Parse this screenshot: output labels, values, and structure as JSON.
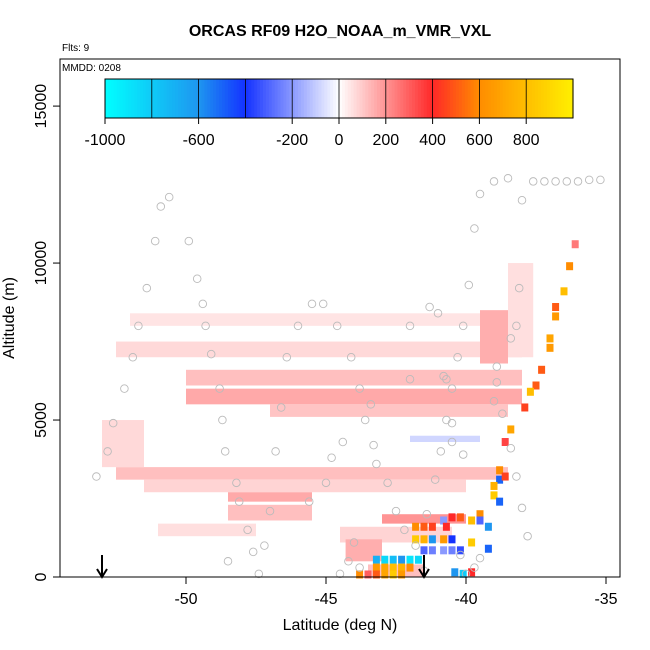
{
  "chart_data": {
    "type": "heatmap",
    "title": "ORCAS RF09 H2O_NOAA_m_VMR_VXL",
    "flts_label": "Flts: 9",
    "date_label": "MMDD: 0208",
    "xlabel": "Latitude (deg N)",
    "ylabel": "Altitude (m)",
    "xlim": [
      -54.5,
      -34.5
    ],
    "ylim": [
      0,
      16500
    ],
    "x_ticks": [
      -50,
      -45,
      -40,
      -35
    ],
    "y_ticks": [
      0,
      5000,
      10000,
      15000
    ],
    "colorbar": {
      "range": [
        -1000,
        1000
      ],
      "tick_values": [
        -1000,
        -600,
        -200,
        0,
        200,
        400,
        600,
        800
      ],
      "tick_labels": [
        "-1000",
        "-600",
        "-200",
        "0",
        "200",
        "400",
        "600",
        "800"
      ],
      "segments": [
        -1000,
        -800,
        -600,
        -400,
        -200,
        0,
        200,
        400,
        600,
        800,
        1000
      ]
    },
    "arrows_lat": [
      -53.0,
      -41.5
    ],
    "bands": [
      {
        "lat": [
          -52.0,
          -38.3
        ],
        "alt": [
          8000,
          8400
        ],
        "value": 50
      },
      {
        "lat": [
          -52.5,
          -38.0
        ],
        "alt": [
          7000,
          7500
        ],
        "value": 70
      },
      {
        "lat": [
          -50.0,
          -38.0
        ],
        "alt": [
          6100,
          6600
        ],
        "value": 120
      },
      {
        "lat": [
          -50.0,
          -38.0
        ],
        "alt": [
          5500,
          6000
        ],
        "value": 160
      },
      {
        "lat": [
          -47.0,
          -38.5
        ],
        "alt": [
          5100,
          5500
        ],
        "value": 110
      },
      {
        "lat": [
          -52.5,
          -38.5
        ],
        "alt": [
          3100,
          3500
        ],
        "value": 120
      },
      {
        "lat": [
          -51.5,
          -40.0
        ],
        "alt": [
          2700,
          3100
        ],
        "value": 80
      },
      {
        "lat": [
          -48.5,
          -45.5
        ],
        "alt": [
          2400,
          2700
        ],
        "value": 160
      },
      {
        "lat": [
          -48.5,
          -45.5
        ],
        "alt": [
          1800,
          2300
        ],
        "value": 120
      },
      {
        "lat": [
          -51.0,
          -47.5
        ],
        "alt": [
          1300,
          1700
        ],
        "value": 60
      },
      {
        "lat": [
          -44.5,
          -40.5
        ],
        "alt": [
          1100,
          1600
        ],
        "value": 80
      },
      {
        "lat": [
          -53.0,
          -51.5
        ],
        "alt": [
          3500,
          5000
        ],
        "value": 70
      },
      {
        "lat": [
          -39.5,
          -38.5
        ],
        "alt": [
          6800,
          8500
        ],
        "value": 150
      },
      {
        "lat": [
          -38.5,
          -37.6
        ],
        "alt": [
          7000,
          10000
        ],
        "value": 60
      },
      {
        "lat": [
          -42.0,
          -39.5
        ],
        "alt": [
          4300,
          4500
        ],
        "value": -80
      },
      {
        "lat": [
          -43.0,
          -40.0
        ],
        "alt": [
          1700,
          2000
        ],
        "value": 200
      },
      {
        "lat": [
          -44.3,
          -43.0
        ],
        "alt": [
          500,
          1200
        ],
        "value": 150
      },
      {
        "lat": [
          -43.5,
          -41.5
        ],
        "alt": [
          0,
          400
        ],
        "value": 120
      }
    ],
    "cells": [
      {
        "lat": -36.1,
        "alt": 10600,
        "value": 250
      },
      {
        "lat": -36.3,
        "alt": 9900,
        "value": 600
      },
      {
        "lat": -36.5,
        "alt": 9100,
        "value": 800
      },
      {
        "lat": -36.8,
        "alt": 8600,
        "value": 500
      },
      {
        "lat": -36.8,
        "alt": 8300,
        "value": 650
      },
      {
        "lat": -37.0,
        "alt": 7600,
        "value": 700
      },
      {
        "lat": -37.0,
        "alt": 7300,
        "value": 650
      },
      {
        "lat": -37.3,
        "alt": 6600,
        "value": 500
      },
      {
        "lat": -37.5,
        "alt": 6100,
        "value": 500
      },
      {
        "lat": -37.7,
        "alt": 5900,
        "value": 800
      },
      {
        "lat": -37.9,
        "alt": 5400,
        "value": 450
      },
      {
        "lat": -38.4,
        "alt": 4700,
        "value": 700
      },
      {
        "lat": -38.6,
        "alt": 4300,
        "value": 350
      },
      {
        "lat": -38.8,
        "alt": 3400,
        "value": 600
      },
      {
        "lat": -38.8,
        "alt": 3100,
        "value": -500
      },
      {
        "lat": -38.6,
        "alt": 3200,
        "value": 450
      },
      {
        "lat": -39.0,
        "alt": 2900,
        "value": 750
      },
      {
        "lat": -39.0,
        "alt": 2600,
        "value": 850
      },
      {
        "lat": -38.8,
        "alt": 2400,
        "value": -500
      },
      {
        "lat": -39.2,
        "alt": 1600,
        "value": -600
      },
      {
        "lat": -39.5,
        "alt": 2000,
        "value": 600
      },
      {
        "lat": -39.5,
        "alt": 1800,
        "value": -300
      },
      {
        "lat": -39.8,
        "alt": 1800,
        "value": 800
      },
      {
        "lat": -40.2,
        "alt": 1900,
        "value": 500
      },
      {
        "lat": -40.5,
        "alt": 1900,
        "value": 400
      },
      {
        "lat": -40.8,
        "alt": 1800,
        "value": -200
      },
      {
        "lat": -41.5,
        "alt": 1600,
        "value": 500
      },
      {
        "lat": -41.8,
        "alt": 1600,
        "value": 600
      },
      {
        "lat": -40.7,
        "alt": 1600,
        "value": 400
      },
      {
        "lat": -41.2,
        "alt": 1600,
        "value": 450
      },
      {
        "lat": -41.5,
        "alt": 1200,
        "value": 750
      },
      {
        "lat": -41.8,
        "alt": 1200,
        "value": 850
      },
      {
        "lat": -41.2,
        "alt": 1200,
        "value": -600
      },
      {
        "lat": -40.8,
        "alt": 1200,
        "value": 650
      },
      {
        "lat": -40.5,
        "alt": 1200,
        "value": -400
      },
      {
        "lat": -39.8,
        "alt": 1100,
        "value": 850
      },
      {
        "lat": -39.2,
        "alt": 900,
        "value": -500
      },
      {
        "lat": -41.5,
        "alt": 850,
        "value": -300
      },
      {
        "lat": -41.2,
        "alt": 850,
        "value": -250
      },
      {
        "lat": -40.8,
        "alt": 850,
        "value": -200
      },
      {
        "lat": -40.5,
        "alt": 850,
        "value": -250
      },
      {
        "lat": -40.2,
        "alt": 850,
        "value": -350
      },
      {
        "lat": -43.2,
        "alt": 550,
        "value": -700
      },
      {
        "lat": -42.9,
        "alt": 550,
        "value": -850
      },
      {
        "lat": -42.6,
        "alt": 550,
        "value": -750
      },
      {
        "lat": -42.3,
        "alt": 550,
        "value": -600
      },
      {
        "lat": -42.0,
        "alt": 550,
        "value": -900
      },
      {
        "lat": -41.7,
        "alt": 550,
        "value": -850
      },
      {
        "lat": -43.2,
        "alt": 300,
        "value": 650
      },
      {
        "lat": -42.9,
        "alt": 300,
        "value": 700
      },
      {
        "lat": -42.6,
        "alt": 300,
        "value": 800
      },
      {
        "lat": -42.3,
        "alt": 300,
        "value": 750
      },
      {
        "lat": -42.0,
        "alt": 300,
        "value": 600
      },
      {
        "lat": -43.5,
        "alt": 80,
        "value": 300
      },
      {
        "lat": -43.2,
        "alt": 80,
        "value": 500
      },
      {
        "lat": -42.9,
        "alt": 80,
        "value": 700
      },
      {
        "lat": -42.6,
        "alt": 80,
        "value": 850
      },
      {
        "lat": -42.3,
        "alt": 80,
        "value": 650
      },
      {
        "lat": -43.8,
        "alt": 80,
        "value": 600
      },
      {
        "lat": -40.1,
        "alt": 100,
        "value": -800
      },
      {
        "lat": -39.8,
        "alt": 150,
        "value": 400
      },
      {
        "lat": -40.4,
        "alt": 150,
        "value": -600
      }
    ],
    "flight_points": [
      [
        -53.2,
        3200
      ],
      [
        -52.8,
        4000
      ],
      [
        -52.6,
        4900
      ],
      [
        -52.2,
        6000
      ],
      [
        -51.9,
        7000
      ],
      [
        -51.7,
        8000
      ],
      [
        -51.4,
        9200
      ],
      [
        -51.1,
        10700
      ],
      [
        -50.9,
        11800
      ],
      [
        -50.6,
        12100
      ],
      [
        -49.9,
        10700
      ],
      [
        -49.6,
        9500
      ],
      [
        -49.4,
        8700
      ],
      [
        -49.3,
        8000
      ],
      [
        -49.1,
        7100
      ],
      [
        -48.8,
        6000
      ],
      [
        -48.7,
        5000
      ],
      [
        -48.6,
        4000
      ],
      [
        -48.2,
        3000
      ],
      [
        -48.1,
        2400
      ],
      [
        -47.8,
        1500
      ],
      [
        -47.6,
        800
      ],
      [
        -47.4,
        100
      ],
      [
        -48.5,
        500
      ],
      [
        -47.2,
        1000
      ],
      [
        -47.0,
        2100
      ],
      [
        -46.8,
        4000
      ],
      [
        -46.6,
        5400
      ],
      [
        -46.4,
        7000
      ],
      [
        -46.0,
        8000
      ],
      [
        -45.5,
        8700
      ],
      [
        -45.1,
        8700
      ],
      [
        -44.6,
        8000
      ],
      [
        -44.1,
        7000
      ],
      [
        -43.8,
        6000
      ],
      [
        -43.6,
        5000
      ],
      [
        -43.3,
        4200
      ],
      [
        -43.2,
        3600
      ],
      [
        -42.8,
        3000
      ],
      [
        -42.5,
        2100
      ],
      [
        -42.2,
        1500
      ],
      [
        -41.8,
        1000
      ],
      [
        -41.5,
        200
      ],
      [
        -41.4,
        2000
      ],
      [
        -41.1,
        3100
      ],
      [
        -40.9,
        4000
      ],
      [
        -40.7,
        5000
      ],
      [
        -40.5,
        6000
      ],
      [
        -40.3,
        7000
      ],
      [
        -40.1,
        8000
      ],
      [
        -39.9,
        9300
      ],
      [
        -39.7,
        11100
      ],
      [
        -39.5,
        12200
      ],
      [
        -39.0,
        12600
      ],
      [
        -38.5,
        12700
      ],
      [
        -38.0,
        12000
      ],
      [
        -37.6,
        12600
      ],
      [
        -37.2,
        12600
      ],
      [
        -36.8,
        12600
      ],
      [
        -36.4,
        12600
      ],
      [
        -36.0,
        12600
      ],
      [
        -35.6,
        12650
      ],
      [
        -35.2,
        12650
      ],
      [
        -38.9,
        6200
      ],
      [
        -38.7,
        5200
      ],
      [
        -38.4,
        4100
      ],
      [
        -38.2,
        3200
      ],
      [
        -38.0,
        2200
      ],
      [
        -37.8,
        1300
      ],
      [
        -39.5,
        600
      ],
      [
        -39.7,
        300
      ],
      [
        -40.0,
        100
      ],
      [
        -40.2,
        700
      ],
      [
        -44.2,
        500
      ],
      [
        -44.0,
        1100
      ],
      [
        -43.8,
        300
      ],
      [
        -44.5,
        100
      ],
      [
        -45.0,
        3000
      ],
      [
        -44.8,
        3800
      ],
      [
        -44.4,
        4300
      ],
      [
        -45.6,
        2400
      ],
      [
        -43.4,
        5500
      ],
      [
        -42.0,
        6300
      ],
      [
        -41.3,
        8600
      ],
      [
        -41.0,
        8400
      ],
      [
        -40.8,
        6400
      ],
      [
        -40.5,
        4300
      ],
      [
        -40.1,
        3900
      ],
      [
        -39.0,
        5600
      ],
      [
        -38.9,
        6700
      ],
      [
        -38.4,
        7600
      ],
      [
        -38.2,
        8000
      ],
      [
        -38.1,
        9200
      ],
      [
        -42.0,
        8000
      ],
      [
        -40.5,
        4900
      ],
      [
        -40.7,
        6300
      ]
    ]
  }
}
